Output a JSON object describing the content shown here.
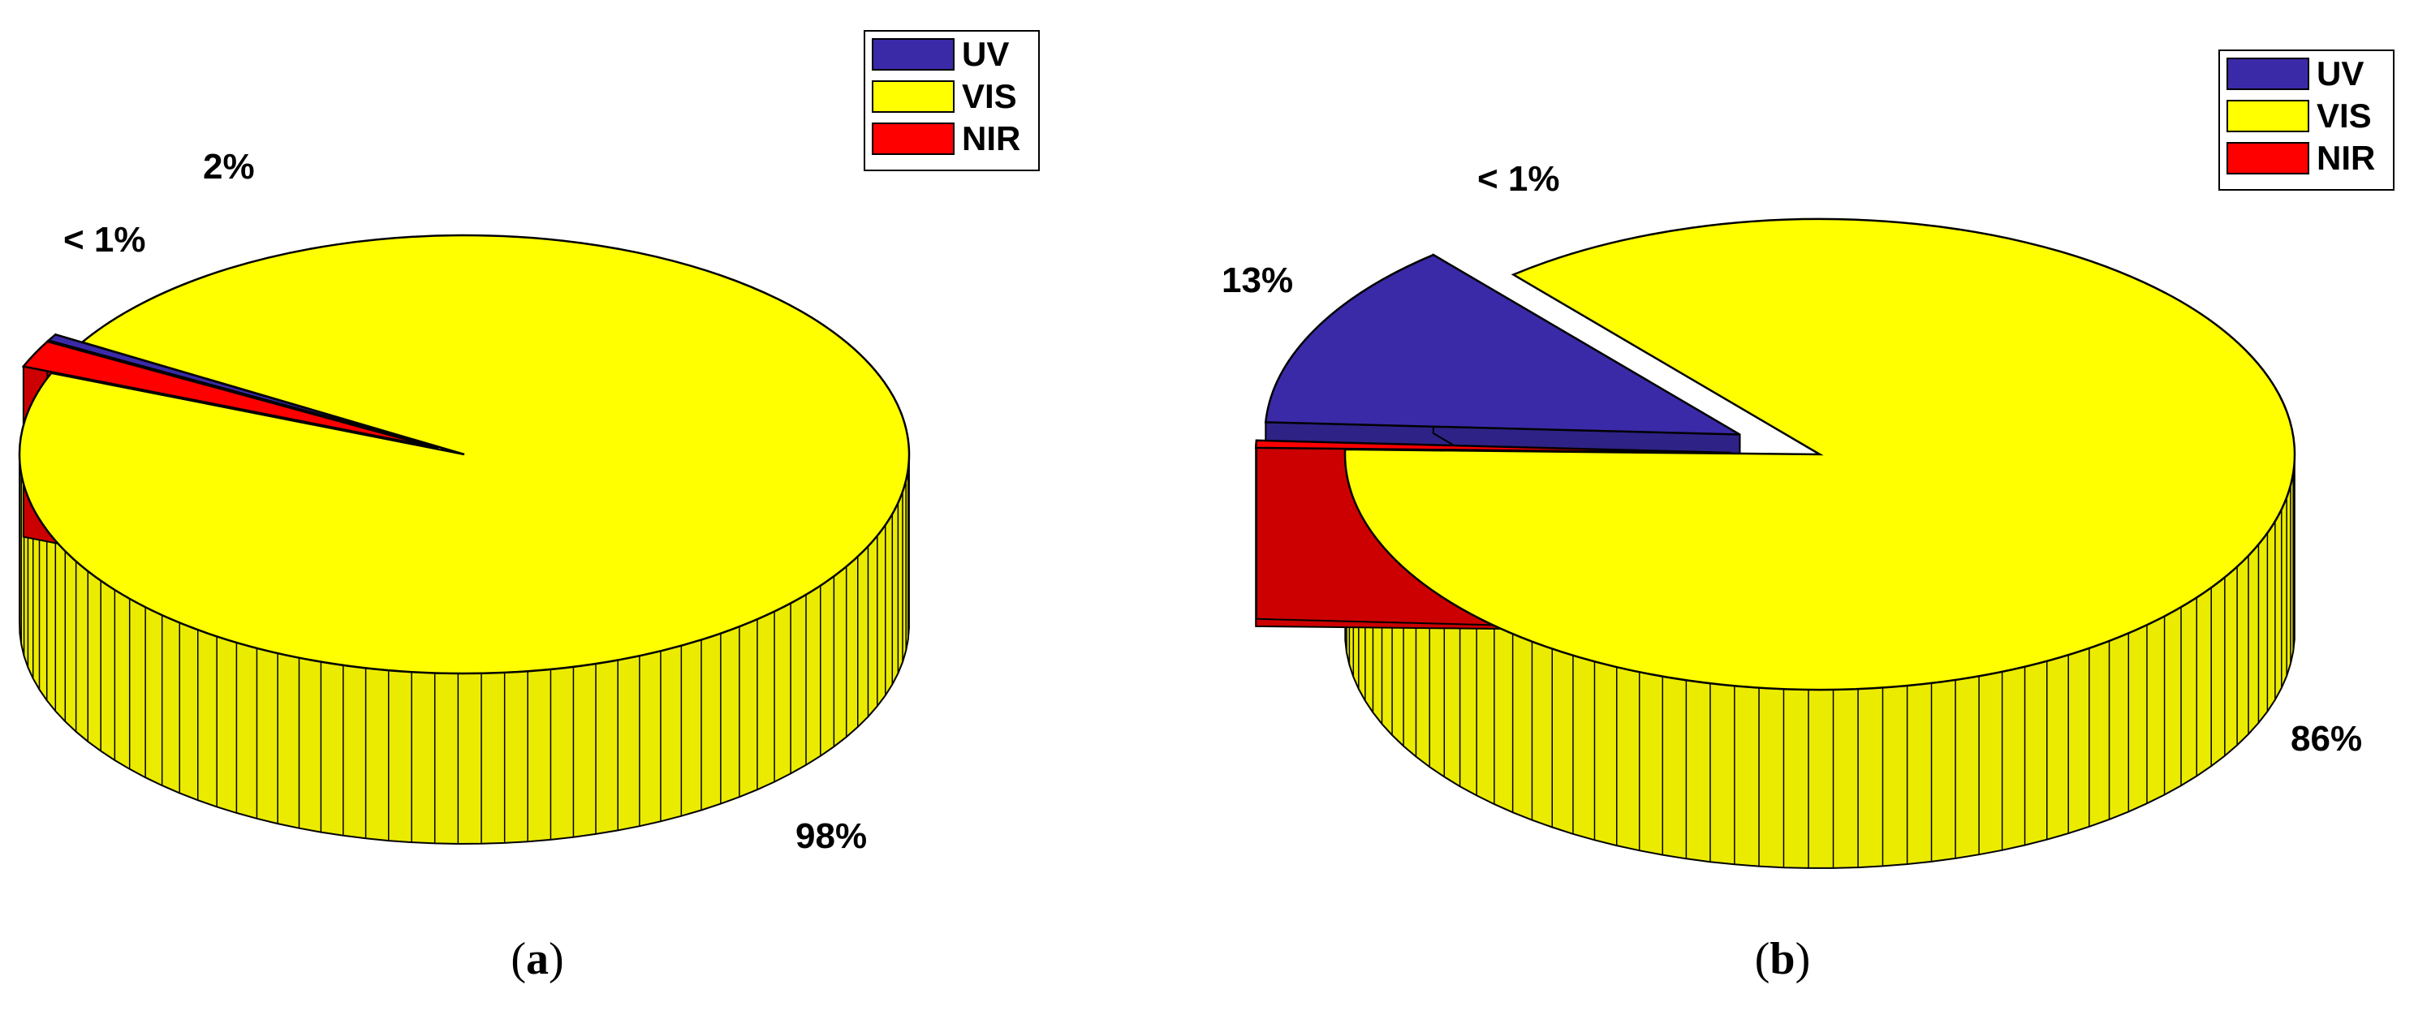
{
  "chart_data": [
    {
      "type": "pie",
      "variant": "3d-exploded",
      "panel_label": "a",
      "categories": [
        "UV",
        "VIS",
        "NIR"
      ],
      "values": [
        0.5,
        97.5,
        2
      ],
      "data_labels": [
        "< 1%",
        "98%",
        "2%"
      ],
      "exploded": [
        "UV",
        "NIR"
      ],
      "legend_placement": "top-right",
      "colors": {
        "UV": "#3a2aa8",
        "VIS": "#ffff00",
        "NIR": "#ff0000"
      }
    },
    {
      "type": "pie",
      "variant": "3d-exploded",
      "panel_label": "b",
      "categories": [
        "UV",
        "VIS",
        "NIR"
      ],
      "values": [
        13,
        86.5,
        0.5
      ],
      "data_labels": [
        "13%",
        "86%",
        "< 1%"
      ],
      "exploded": [
        "UV",
        "NIR"
      ],
      "legend_placement": "top-right",
      "colors": {
        "UV": "#3a2aa8",
        "VIS": "#ffff00",
        "NIR": "#ff0000"
      }
    }
  ],
  "legend": {
    "items": [
      "UV",
      "VIS",
      "NIR"
    ]
  },
  "captions": {
    "a": {
      "open": "(",
      "letter": "a",
      "close": ")"
    },
    "b": {
      "open": "(",
      "letter": "b",
      "close": ")"
    }
  }
}
